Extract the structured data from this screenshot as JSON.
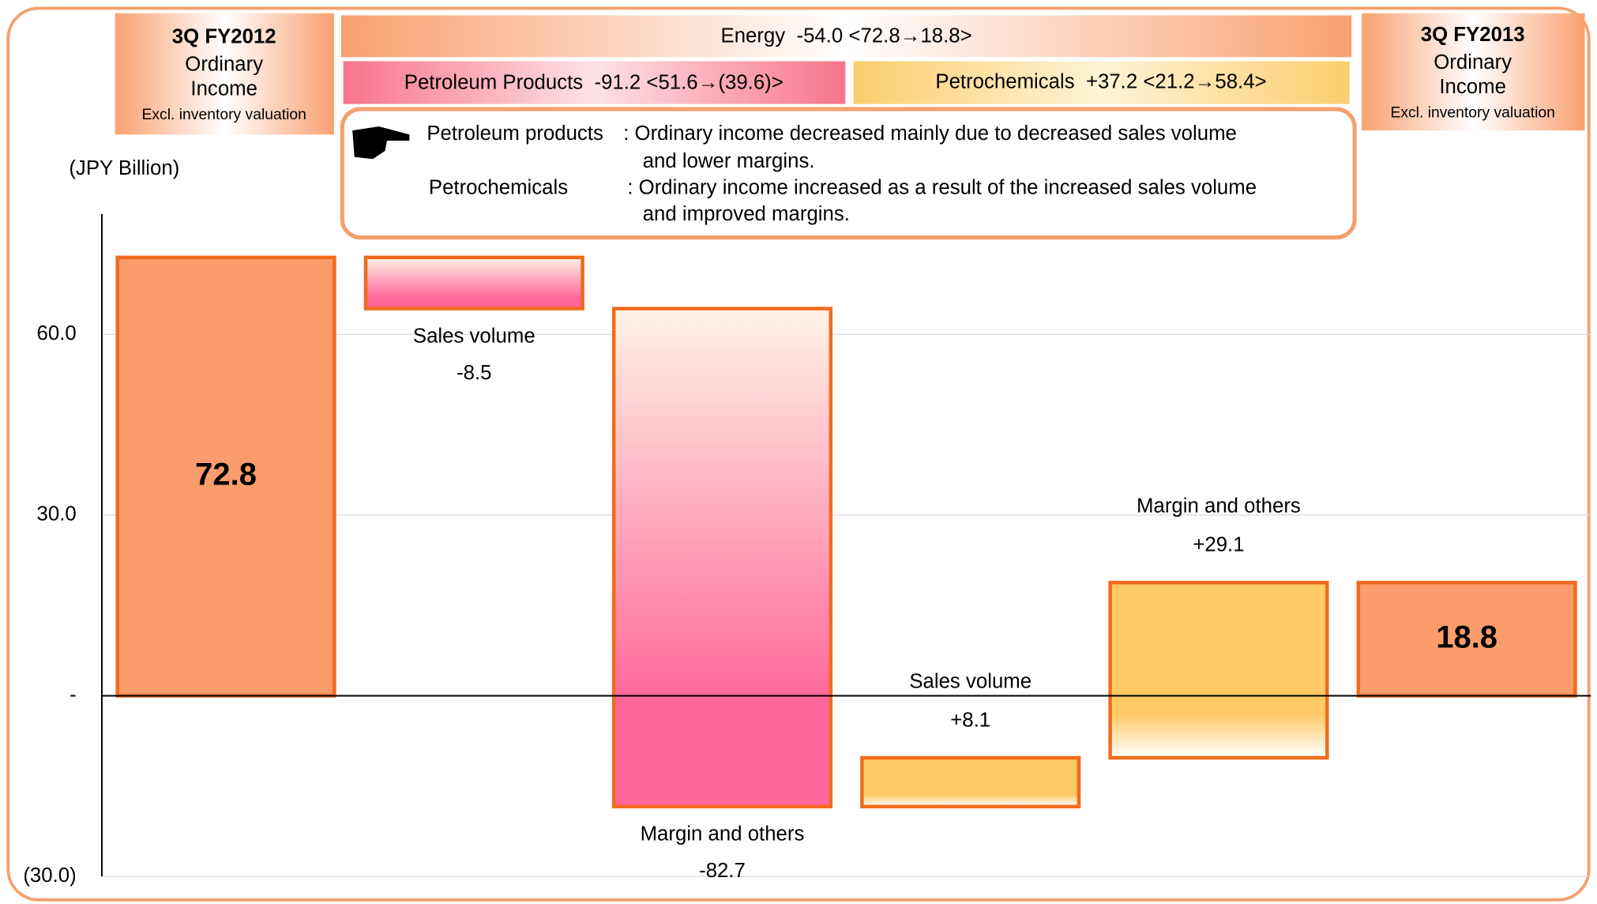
{
  "unit_label": "(JPY Billion)",
  "banners": {
    "energy": "Energy  -54.0 <72.8→18.8>",
    "petroleum": "Petroleum Products  -91.2 <51.6→(39.6)>",
    "petrochemicals": "Petrochemicals  +37.2 <21.2→58.4>"
  },
  "headers": [
    {
      "lines": [
        "3Q FY2012",
        "Ordinary",
        "Income",
        "Excl. inventory valuation"
      ]
    },
    {
      "lines": [
        "3Q FY2013",
        "Ordinary",
        "Income",
        "Excl. inventory valuation"
      ]
    }
  ],
  "note": {
    "rows": [
      [
        "Petroleum products",
        ": Ordinary income decreased mainly due to decreased sales volume",
        "and lower margins."
      ],
      [
        "Petrochemicals",
        ": Ordinary income increased as a result of the increased sales volume",
        "and improved margins."
      ]
    ]
  },
  "chart_data": {
    "type": "waterfall",
    "categories": [
      null,
      "Sales volume",
      "Margin and others",
      "Sales volume",
      "Margin and others",
      null
    ],
    "values": [
      72.8,
      -8.5,
      -82.7,
      8.1,
      29.1,
      18.8
    ],
    "value_labels": [
      "72.8",
      "-8.5",
      "-82.7",
      "+8.1",
      "+29.1",
      "18.8"
    ],
    "colors": [
      "#fa9c6c",
      "#ff6699",
      "#ff6699",
      "#ffc966",
      "#ffc966",
      "#fa9c6c"
    ],
    "edge_color": "#f26b1d",
    "ylim": [
      -30,
      80
    ],
    "yticks": [
      {
        "value": -30,
        "label": "(30.0)"
      },
      {
        "value": 0,
        "label": "-"
      },
      {
        "value": 30,
        "label": "30.0"
      },
      {
        "value": 60,
        "label": "60.0"
      }
    ],
    "grid": true
  }
}
